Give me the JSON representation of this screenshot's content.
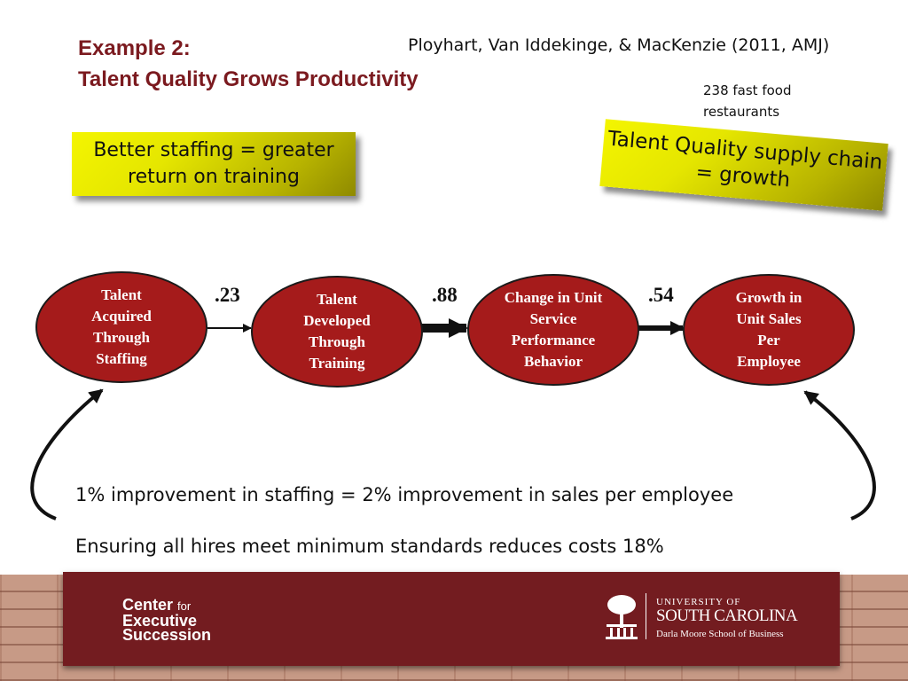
{
  "slide": {
    "title_line1": "Example 2:",
    "title_line2": "Talent Quality Grows Productivity",
    "citation": "Ployhart, Van Iddekinge, & MacKenzie (2011, AMJ)",
    "sample_note": "238 fast food restaurants",
    "callout_left": "Better staffing = greater return on training",
    "callout_right": "Talent Quality supply chain = growth"
  },
  "diagram": {
    "nodes": [
      {
        "label": "Talent Acquired Through Staffing"
      },
      {
        "label": "Talent Developed Through Training"
      },
      {
        "label": "Change in Unit Service Performance Behavior"
      },
      {
        "label": "Growth in Unit Sales Per Employee"
      }
    ],
    "edges": [
      {
        "from": 0,
        "to": 1,
        "coefficient": ".23"
      },
      {
        "from": 1,
        "to": 2,
        "coefficient": ".88"
      },
      {
        "from": 2,
        "to": 3,
        "coefficient": ".54"
      }
    ]
  },
  "findings": [
    "1% improvement in staffing = 2% improvement in sales per employee",
    "Ensuring all hires meet minimum standards reduces costs 18%"
  ],
  "footer": {
    "ces_line1": "Center",
    "ces_for": "for",
    "ces_line2": "Executive",
    "ces_line3": "Succession",
    "usc_univ": "UNIVERSITY OF",
    "usc_name": "SOUTH CAROLINA",
    "usc_school": "Darla Moore School of Business"
  },
  "colors": {
    "title": "#7b1a1f",
    "oval_fill": "#a51b1b",
    "banner": "#731c20",
    "callout": "#e5e600"
  }
}
